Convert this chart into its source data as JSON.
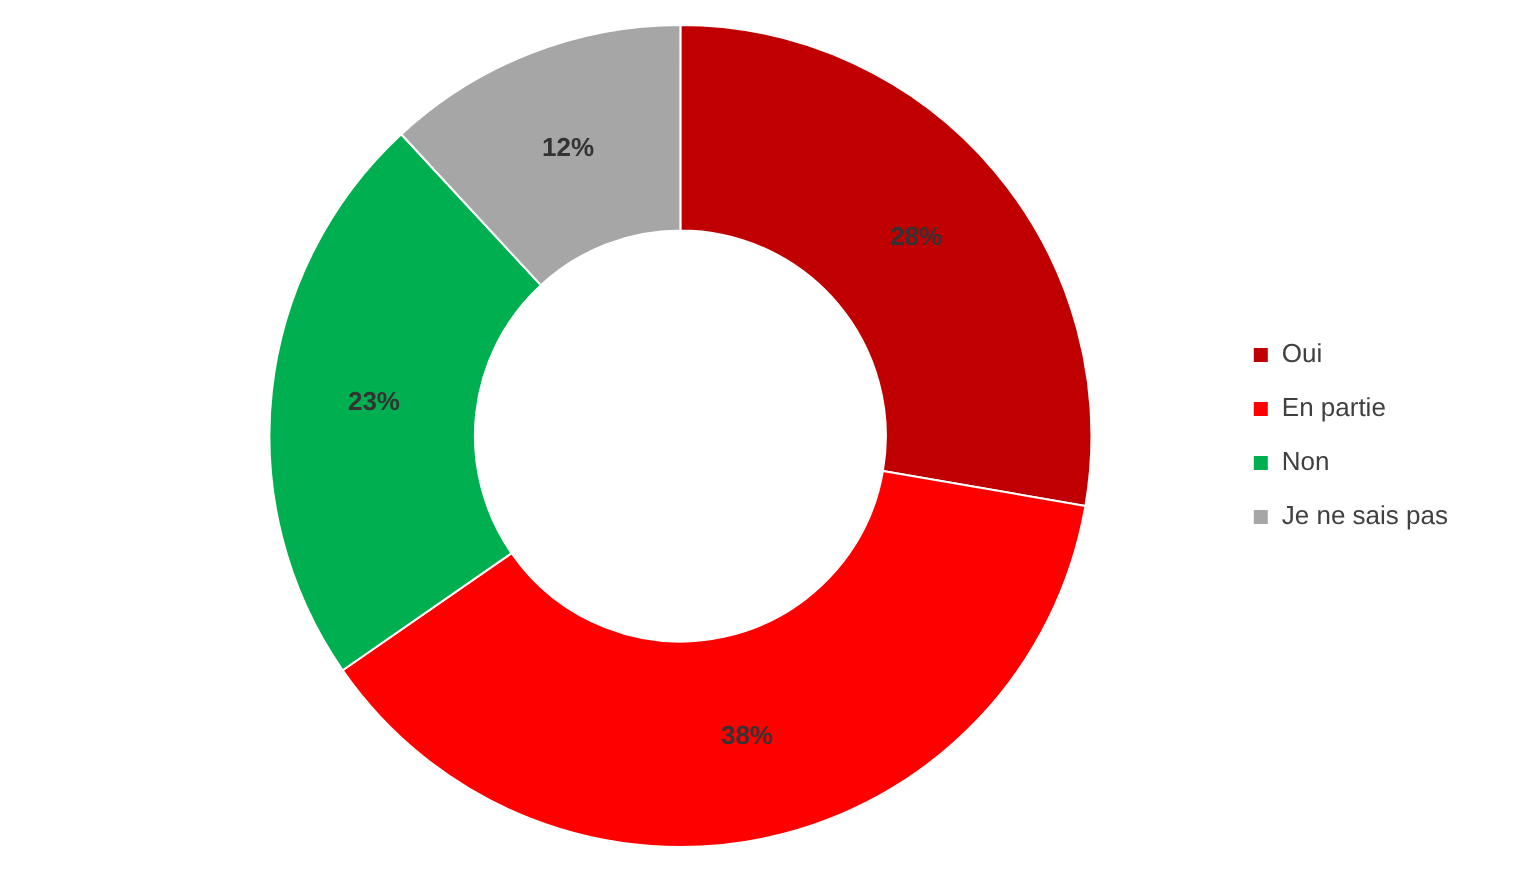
{
  "chart_data": {
    "type": "donut",
    "categories": [
      "Oui",
      "En partie",
      "Non",
      "Je ne sais pas"
    ],
    "values": [
      28,
      38,
      23,
      12
    ],
    "colors": [
      "#c00000",
      "#ff0000",
      "#00b050",
      "#a6a6a6"
    ],
    "legend": "right",
    "value_labels": [
      "28%",
      "38%",
      "23%",
      "12%"
    ]
  }
}
